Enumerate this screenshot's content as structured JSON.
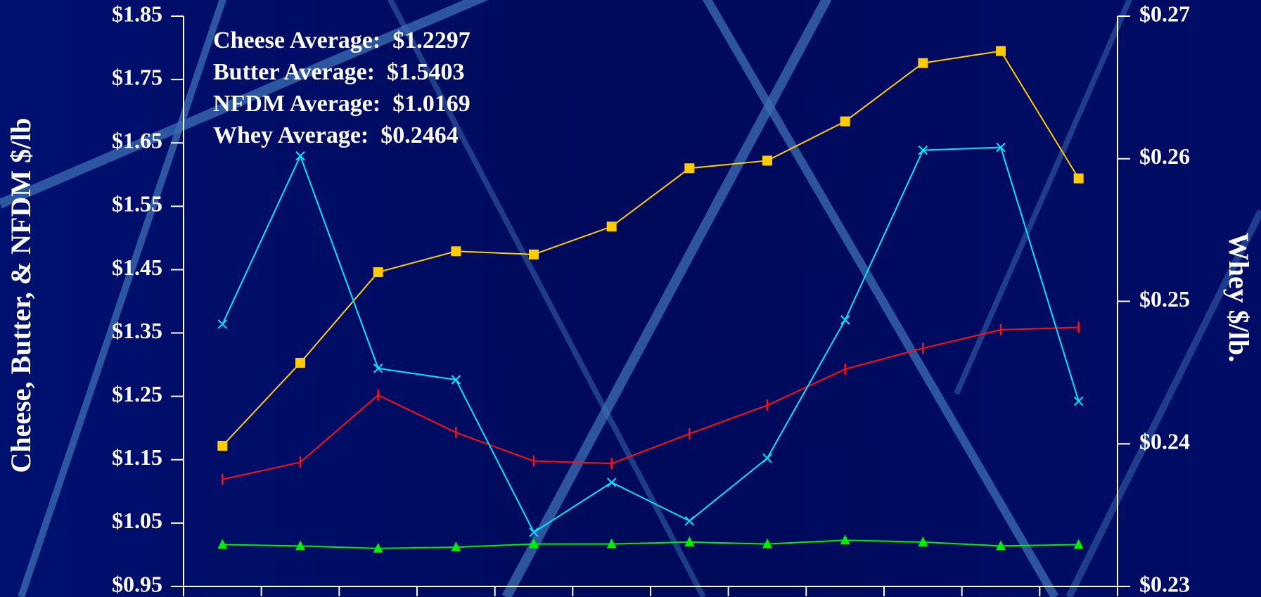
{
  "chart_data": {
    "type": "line",
    "annotations": [
      "Cheese Average:  $1.2297",
      "Butter Average:  $1.5403",
      "NFDM Average:  $1.0169",
      "Whey Average:  $0.2464"
    ],
    "ylabel": "Cheese, Butter, & NFDM $/lb",
    "y2label": "Whey $/lb.",
    "categories": [
      null,
      null,
      null,
      null,
      null,
      null,
      null,
      null,
      null,
      null,
      null,
      null
    ],
    "series": [
      {
        "color": "#ff1010",
        "marker": "bar",
        "values": [
          1.119,
          1.146,
          1.252,
          1.193,
          1.148,
          1.144,
          1.191,
          1.236,
          1.293,
          1.326,
          1.355,
          1.359
        ]
      },
      {
        "color": "#ffcc00",
        "marker": "square",
        "values": [
          1.172,
          1.303,
          1.446,
          1.479,
          1.474,
          1.518,
          1.61,
          1.622,
          1.684,
          1.776,
          1.795,
          1.594
        ]
      },
      {
        "color": "#00ee00",
        "marker": "triangle",
        "values": [
          1.016,
          1.014,
          1.01,
          1.012,
          1.017,
          1.017,
          1.02,
          1.017,
          1.023,
          1.02,
          1.014,
          1.016
        ]
      },
      {
        "color": "#00e5ff",
        "marker": "x",
        "axis": "y2",
        "values": [
          0.2484,
          0.2602,
          0.2453,
          0.2445,
          0.2338,
          0.2373,
          0.2346,
          0.239,
          0.2487,
          0.2606,
          0.2608,
          0.243
        ]
      }
    ],
    "ylim": [
      0.95,
      1.85
    ],
    "yticks": [
      {
        "value": 0.95,
        "label": "$0.95"
      },
      {
        "value": 1.05,
        "label": "$1.05"
      },
      {
        "value": 1.15,
        "label": "$1.15"
      },
      {
        "value": 1.25,
        "label": "$1.25"
      },
      {
        "value": 1.35,
        "label": "$1.35"
      },
      {
        "value": 1.45,
        "label": "$1.45"
      },
      {
        "value": 1.55,
        "label": "$1.55"
      },
      {
        "value": 1.65,
        "label": "$1.65"
      },
      {
        "value": 1.75,
        "label": "$1.75"
      },
      {
        "value": 1.85,
        "label": "$1.85"
      }
    ],
    "y2lim": [
      0.23,
      0.27
    ],
    "y2ticks": [
      {
        "value": 0.23,
        "label": "$0.23"
      },
      {
        "value": 0.24,
        "label": "$0.24"
      },
      {
        "value": 0.25,
        "label": "$0.25"
      },
      {
        "value": 0.26,
        "label": "$0.26"
      },
      {
        "value": 0.27,
        "label": "$0.27"
      }
    ],
    "grid": false
  }
}
